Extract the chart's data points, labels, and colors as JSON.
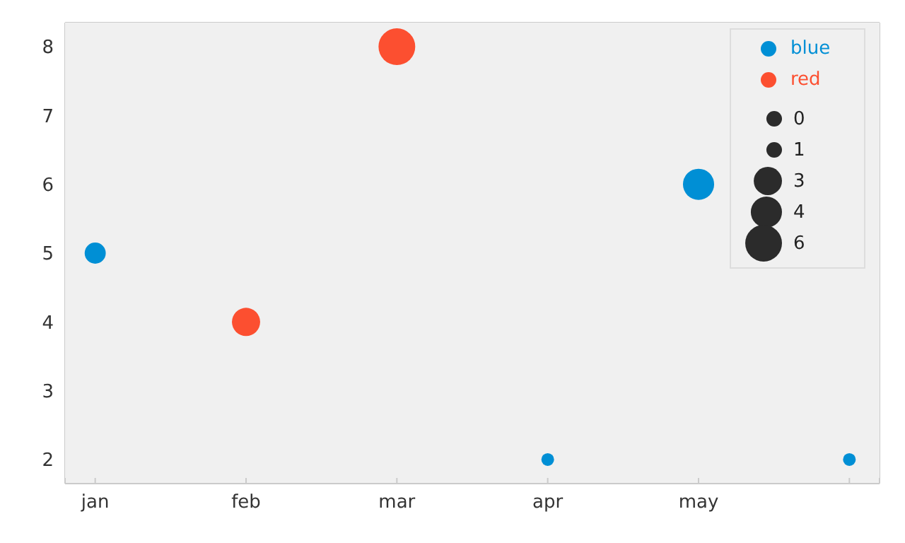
{
  "chart_data": {
    "type": "bubble",
    "categories": [
      "jan",
      "feb",
      "mar",
      "apr",
      "may",
      null
    ],
    "series": [
      {
        "name": "blue",
        "color": "#008fd5",
        "values": [
          5,
          null,
          null,
          2,
          6,
          2
        ],
        "sizes": [
          0.33,
          null,
          null,
          0.12,
          0.72,
          0.12
        ]
      },
      {
        "name": "red",
        "color": "#fc4f30",
        "values": [
          null,
          4,
          8,
          null,
          null,
          null
        ],
        "sizes": [
          null,
          0.59,
          1,
          null,
          null,
          null
        ]
      }
    ],
    "size_legend": [
      {
        "value": 0.18,
        "label": "0"
      },
      {
        "value": 0.18,
        "label": "1"
      },
      {
        "value": 0.59,
        "label": "3"
      },
      {
        "value": 0.72,
        "label": "4"
      },
      {
        "value": 1,
        "label": "6"
      }
    ],
    "ylim": [
      1.65,
      8.35
    ],
    "yticks": [
      2,
      3,
      4,
      5,
      6,
      7,
      8
    ],
    "grid": true,
    "legend": "top right"
  }
}
